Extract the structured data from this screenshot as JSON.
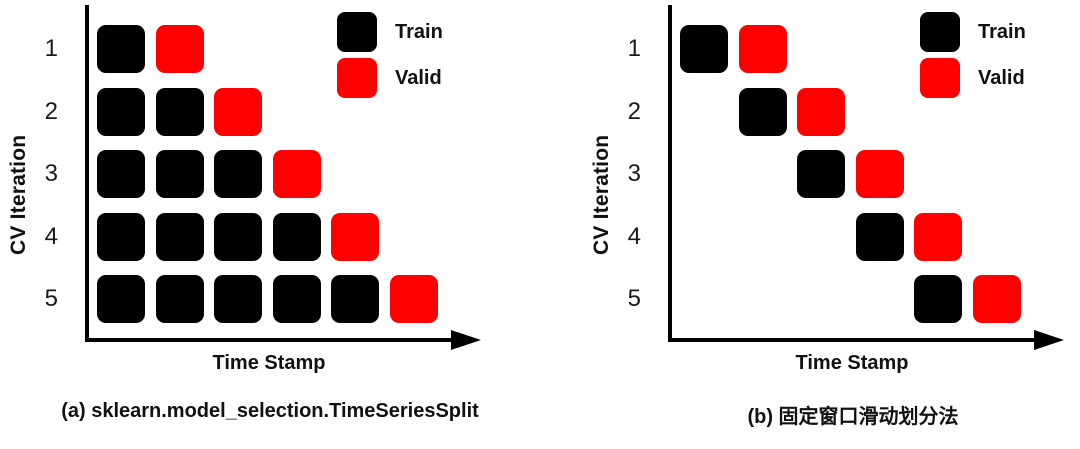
{
  "figure": {
    "background": "#ffffff",
    "colors": {
      "train": "#000000",
      "valid": "#fe0000",
      "axis": "#000000",
      "text": "#111111"
    }
  },
  "panels": [
    {
      "caption": "(a) sklearn.model_selection.TimeSeriesSplit",
      "y_axis_label": "CV Iteration",
      "x_axis_label": "Time Stamp",
      "legend": [
        {
          "label": "Train",
          "role": "train",
          "color": "#000000"
        },
        {
          "label": "Valid",
          "role": "valid",
          "color": "#fe0000"
        }
      ],
      "rows": [
        {
          "iteration": "1",
          "cells": [
            "train",
            "valid",
            "",
            "",
            "",
            ""
          ]
        },
        {
          "iteration": "2",
          "cells": [
            "train",
            "train",
            "valid",
            "",
            "",
            ""
          ]
        },
        {
          "iteration": "3",
          "cells": [
            "train",
            "train",
            "train",
            "valid",
            "",
            ""
          ]
        },
        {
          "iteration": "4",
          "cells": [
            "train",
            "train",
            "train",
            "train",
            "valid",
            ""
          ]
        },
        {
          "iteration": "5",
          "cells": [
            "train",
            "train",
            "train",
            "train",
            "train",
            "valid"
          ]
        }
      ]
    },
    {
      "caption": "(b) 固定窗口滑动划分法",
      "y_axis_label": "CV Iteration",
      "x_axis_label": "Time Stamp",
      "legend": [
        {
          "label": "Train",
          "role": "train",
          "color": "#000000"
        },
        {
          "label": "Valid",
          "role": "valid",
          "color": "#fe0000"
        }
      ],
      "rows": [
        {
          "iteration": "1",
          "cells": [
            "train",
            "valid",
            "",
            "",
            "",
            ""
          ]
        },
        {
          "iteration": "2",
          "cells": [
            "",
            "train",
            "valid",
            "",
            "",
            ""
          ]
        },
        {
          "iteration": "3",
          "cells": [
            "",
            "",
            "train",
            "valid",
            "",
            ""
          ]
        },
        {
          "iteration": "4",
          "cells": [
            "",
            "",
            "",
            "train",
            "valid",
            ""
          ]
        },
        {
          "iteration": "5",
          "cells": [
            "",
            "",
            "",
            "",
            "train",
            "valid"
          ]
        }
      ]
    }
  ],
  "chart_data": [
    {
      "type": "heatmap",
      "title": "(a) sklearn.model_selection.TimeSeriesSplit",
      "xlabel": "Time Stamp",
      "ylabel": "CV Iteration",
      "y_categories": [
        "1",
        "2",
        "3",
        "4",
        "5"
      ],
      "legend": [
        "Train",
        "Valid"
      ],
      "legend_position": "upper right",
      "train_columns_per_iteration": [
        [
          1
        ],
        [
          1,
          2
        ],
        [
          1,
          2,
          3
        ],
        [
          1,
          2,
          3,
          4
        ],
        [
          1,
          2,
          3,
          4,
          5
        ]
      ],
      "valid_column_per_iteration": [
        2,
        3,
        4,
        5,
        6
      ]
    },
    {
      "type": "heatmap",
      "title": "(b) 固定窗口滑动划分法",
      "xlabel": "Time Stamp",
      "ylabel": "CV Iteration",
      "y_categories": [
        "1",
        "2",
        "3",
        "4",
        "5"
      ],
      "legend": [
        "Train",
        "Valid"
      ],
      "legend_position": "upper right",
      "train_columns_per_iteration": [
        [
          1
        ],
        [
          2
        ],
        [
          3
        ],
        [
          4
        ],
        [
          5
        ]
      ],
      "valid_column_per_iteration": [
        2,
        3,
        4,
        5,
        6
      ]
    }
  ]
}
